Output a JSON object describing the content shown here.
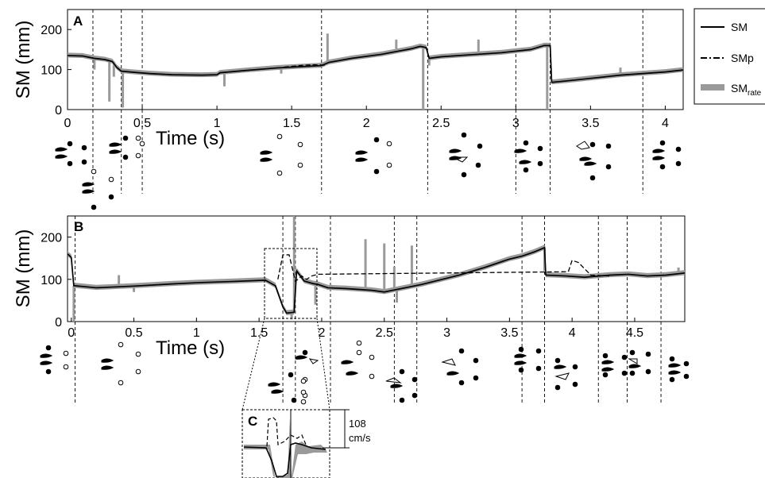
{
  "legend": {
    "items": [
      {
        "label": "SM",
        "style": "solid"
      },
      {
        "label": "SMp",
        "style": "dashdot"
      },
      {
        "label": "SM",
        "sub": "rate",
        "style": "band"
      }
    ]
  },
  "panels": {
    "a": {
      "letter": "A"
    },
    "b": {
      "letter": "B"
    },
    "c": {
      "letter": "C",
      "scalebar_value": "108",
      "scalebar_unit": "cm/s"
    }
  },
  "colors": {
    "sm": "#000000",
    "band": "#9a9a9a",
    "axis": "#000000"
  },
  "chart_data": [
    {
      "panel": "A",
      "type": "line",
      "xlabel": "Time (s)",
      "ylabel": "SM (mm)",
      "xlim": [
        0,
        4.12
      ],
      "ylim": [
        0,
        250
      ],
      "xticks": [
        0,
        0.5,
        1,
        1.5,
        2,
        2.5,
        3,
        3.5,
        4
      ],
      "xticklabels": [
        "0",
        "0.5",
        "1",
        "1.5",
        "2",
        "2.5",
        "3",
        "3.5",
        "4"
      ],
      "yticks": [
        0,
        100,
        200
      ],
      "yticklabels": [
        "0",
        "100",
        "200"
      ],
      "event_lines": [
        0.17,
        0.36,
        0.5,
        1.7,
        2.41,
        3.0,
        3.23,
        3.85
      ],
      "series": [
        {
          "name": "SM",
          "style": "solid",
          "points": [
            [
              0,
              135
            ],
            [
              0.1,
              134
            ],
            [
              0.18,
              128
            ],
            [
              0.25,
              125
            ],
            [
              0.3,
              120
            ],
            [
              0.33,
              105
            ],
            [
              0.36,
              96
            ],
            [
              0.45,
              93
            ],
            [
              0.55,
              90
            ],
            [
              0.7,
              87
            ],
            [
              0.9,
              86
            ],
            [
              1.0,
              87
            ],
            [
              1.02,
              92
            ],
            [
              1.2,
              98
            ],
            [
              1.4,
              104
            ],
            [
              1.6,
              108
            ],
            [
              1.7,
              110
            ],
            [
              1.75,
              118
            ],
            [
              1.9,
              128
            ],
            [
              2.1,
              138
            ],
            [
              2.3,
              152
            ],
            [
              2.36,
              158
            ],
            [
              2.4,
              155
            ],
            [
              2.42,
              128
            ],
            [
              2.5,
              132
            ],
            [
              2.7,
              137
            ],
            [
              2.9,
              142
            ],
            [
              3.1,
              150
            ],
            [
              3.19,
              160
            ],
            [
              3.23,
              160
            ],
            [
              3.24,
              68
            ],
            [
              3.35,
              72
            ],
            [
              3.5,
              78
            ],
            [
              3.7,
              86
            ],
            [
              3.85,
              90
            ],
            [
              4.0,
              94
            ],
            [
              4.12,
              99
            ]
          ]
        },
        {
          "name": "SMp",
          "style": "dashdot",
          "points": [
            [
              1.45,
              106
            ],
            [
              1.55,
              110
            ],
            [
              1.65,
              112
            ],
            [
              1.72,
              111
            ]
          ]
        }
      ],
      "band_spikes": [
        [
          0.18,
          100
        ],
        [
          0.28,
          20
        ],
        [
          0.31,
          82
        ],
        [
          0.37,
          5
        ],
        [
          1.05,
          58
        ],
        [
          1.43,
          90
        ],
        [
          1.74,
          190
        ],
        [
          2.2,
          175
        ],
        [
          2.38,
          0
        ],
        [
          2.42,
          110
        ],
        [
          2.75,
          175
        ],
        [
          3.21,
          0
        ],
        [
          3.7,
          105
        ]
      ]
    },
    {
      "panel": "B",
      "type": "line",
      "xlabel": "Time (s)",
      "ylabel": "SM (mm)",
      "xlim": [
        -0.03,
        4.9
      ],
      "ylim": [
        0,
        250
      ],
      "xticks": [
        0,
        0.5,
        1,
        1.5,
        2,
        2.5,
        3,
        3.5,
        4,
        4.5
      ],
      "xticklabels": [
        "0",
        "0.5",
        "1",
        "1.5",
        "2",
        "2.5",
        "3",
        "3.5",
        "4",
        "4.5"
      ],
      "yticks": [
        0,
        100,
        200
      ],
      "yticklabels": [
        "0",
        "100",
        "200"
      ],
      "event_lines": [
        0.03,
        1.69,
        1.79,
        2.07,
        2.58,
        2.76,
        3.6,
        3.78,
        4.21,
        4.44,
        4.71
      ],
      "series": [
        {
          "name": "SM",
          "style": "solid",
          "points": [
            [
              -0.03,
              160
            ],
            [
              0.0,
              152
            ],
            [
              0.02,
              85
            ],
            [
              0.2,
              80
            ],
            [
              0.5,
              84
            ],
            [
              0.8,
              89
            ],
            [
              1.0,
              92
            ],
            [
              1.3,
              95
            ],
            [
              1.55,
              98
            ],
            [
              1.63,
              85
            ],
            [
              1.69,
              35
            ],
            [
              1.72,
              20
            ],
            [
              1.78,
              22
            ],
            [
              1.8,
              120
            ],
            [
              1.86,
              96
            ],
            [
              1.93,
              90
            ],
            [
              1.97,
              88
            ],
            [
              2.05,
              80
            ],
            [
              2.2,
              78
            ],
            [
              2.4,
              74
            ],
            [
              2.5,
              70
            ],
            [
              2.6,
              76
            ],
            [
              2.8,
              88
            ],
            [
              3.1,
              110
            ],
            [
              3.3,
              128
            ],
            [
              3.5,
              148
            ],
            [
              3.6,
              155
            ],
            [
              3.7,
              165
            ],
            [
              3.78,
              175
            ],
            [
              3.79,
              110
            ],
            [
              3.95,
              108
            ],
            [
              4.1,
              105
            ],
            [
              4.3,
              110
            ],
            [
              4.45,
              112
            ],
            [
              4.6,
              108
            ],
            [
              4.75,
              110
            ],
            [
              4.9,
              115
            ]
          ]
        },
        {
          "name": "SMp",
          "style": "dashdot",
          "points": [
            [
              1.65,
              100
            ],
            [
              1.69,
              158
            ],
            [
              1.74,
              158
            ],
            [
              1.79,
              95
            ],
            [
              1.84,
              108
            ],
            [
              1.88,
              100
            ],
            [
              1.92,
              108
            ],
            [
              1.97,
              112
            ],
            [
              3.97,
              118
            ],
            [
              4.0,
              145
            ],
            [
              4.05,
              140
            ],
            [
              4.15,
              110
            ],
            [
              4.3,
              108
            ]
          ]
        }
      ],
      "band_spikes": [
        [
          0.02,
          0
        ],
        [
          0.38,
          110
        ],
        [
          0.5,
          70
        ],
        [
          1.76,
          5
        ],
        [
          1.78,
          250
        ],
        [
          1.95,
          40
        ],
        [
          2.35,
          195
        ],
        [
          2.5,
          185
        ],
        [
          2.58,
          130
        ],
        [
          2.6,
          45
        ],
        [
          2.72,
          180
        ],
        [
          3.78,
          120
        ],
        [
          4.85,
          128
        ]
      ]
    }
  ]
}
